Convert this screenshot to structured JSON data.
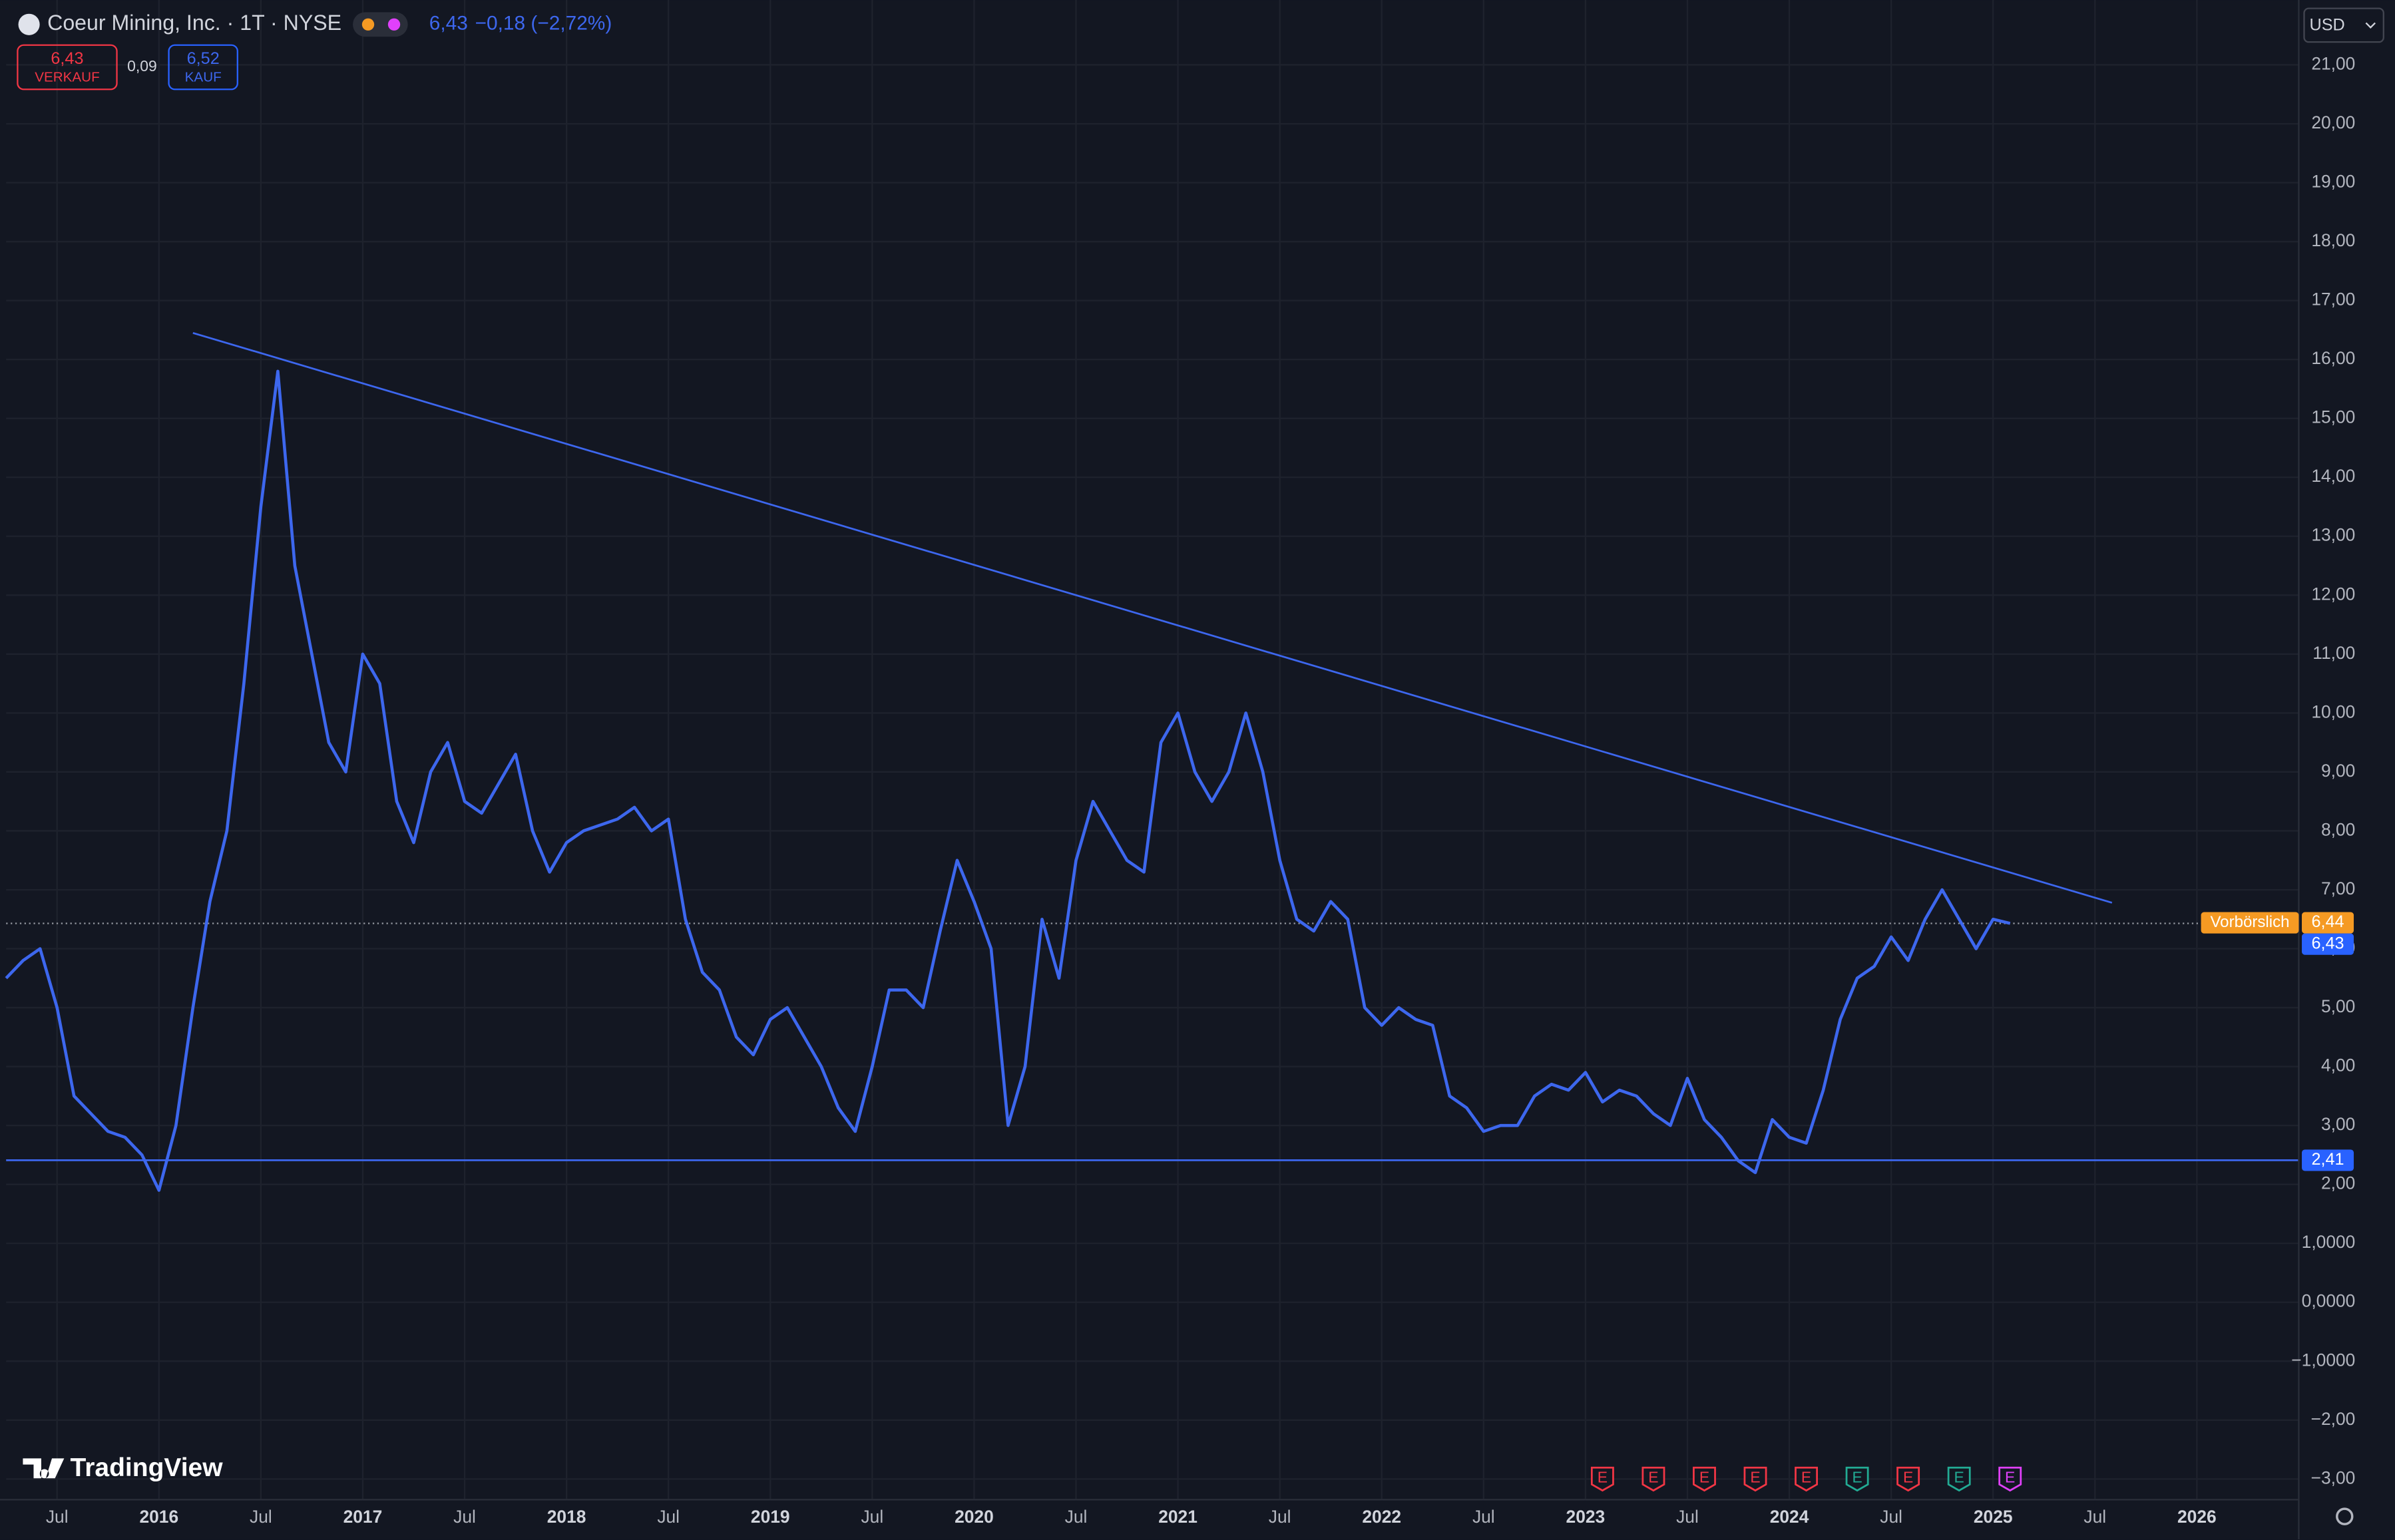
{
  "header": {
    "symbol": "Coeur Mining, Inc. · 1T · NYSE",
    "last": "6,43",
    "change": "−0,18 (−2,72%)",
    "sell_price": "6,43",
    "sell_label": "VERKAUF",
    "spread": "0,09",
    "buy_price": "6,52",
    "buy_label": "KAUF",
    "currency": "USD",
    "brand": "TradingView"
  },
  "chart_data": {
    "type": "line",
    "xlim": [
      "2015-04",
      "2026-07"
    ],
    "xticks": [
      {
        "value": "2015-07",
        "label": "Jul"
      },
      {
        "value": "2016-01",
        "label": "2016"
      },
      {
        "value": "2016-07",
        "label": "Jul"
      },
      {
        "value": "2017-01",
        "label": "2017"
      },
      {
        "value": "2017-07",
        "label": "Jul"
      },
      {
        "value": "2018-01",
        "label": "2018"
      },
      {
        "value": "2018-07",
        "label": "Jul"
      },
      {
        "value": "2019-01",
        "label": "2019"
      },
      {
        "value": "2019-07",
        "label": "Jul"
      },
      {
        "value": "2020-01",
        "label": "2020"
      },
      {
        "value": "2020-07",
        "label": "Jul"
      },
      {
        "value": "2021-01",
        "label": "2021"
      },
      {
        "value": "2021-07",
        "label": "Jul"
      },
      {
        "value": "2022-01",
        "label": "2022"
      },
      {
        "value": "2022-07",
        "label": "Jul"
      },
      {
        "value": "2023-01",
        "label": "2023"
      },
      {
        "value": "2023-07",
        "label": "Jul"
      },
      {
        "value": "2024-01",
        "label": "2024"
      },
      {
        "value": "2024-07",
        "label": "Jul"
      },
      {
        "value": "2025-01",
        "label": "2025"
      },
      {
        "value": "2025-07",
        "label": "Jul"
      },
      {
        "value": "2026-01",
        "label": "2026"
      }
    ],
    "ylim": [
      -3.35,
      22.1
    ],
    "yticks": [
      {
        "value": -3,
        "label": "−3,00"
      },
      {
        "value": -2,
        "label": "−2,00"
      },
      {
        "value": -1,
        "label": "−1,0000"
      },
      {
        "value": 0,
        "label": "0,0000"
      },
      {
        "value": 1,
        "label": "1,0000"
      },
      {
        "value": 2,
        "label": "2,00"
      },
      {
        "value": 3,
        "label": "3,00"
      },
      {
        "value": 4,
        "label": "4,00"
      },
      {
        "value": 5,
        "label": "5,00"
      },
      {
        "value": 6,
        "label": "6,00"
      },
      {
        "value": 7,
        "label": "7,00"
      },
      {
        "value": 8,
        "label": "8,00"
      },
      {
        "value": 9,
        "label": "9,00"
      },
      {
        "value": 10,
        "label": "10,00"
      },
      {
        "value": 11,
        "label": "11,00"
      },
      {
        "value": 12,
        "label": "12,00"
      },
      {
        "value": 13,
        "label": "13,00"
      },
      {
        "value": 14,
        "label": "14,00"
      },
      {
        "value": 15,
        "label": "15,00"
      },
      {
        "value": 16,
        "label": "16,00"
      },
      {
        "value": 17,
        "label": "17,00"
      },
      {
        "value": 18,
        "label": "18,00"
      },
      {
        "value": 19,
        "label": "19,00"
      },
      {
        "value": 20,
        "label": "20,00"
      },
      {
        "value": 21,
        "label": "21,00"
      }
    ],
    "grid": true,
    "series": [
      {
        "name": "CDE",
        "color": "#3d67ee",
        "x": [
          "2015-04",
          "2015-05",
          "2015-06",
          "2015-07",
          "2015-08",
          "2015-09",
          "2015-10",
          "2015-11",
          "2015-12",
          "2016-01",
          "2016-02",
          "2016-03",
          "2016-04",
          "2016-05",
          "2016-06",
          "2016-07",
          "2016-08",
          "2016-09",
          "2016-10",
          "2016-11",
          "2016-12",
          "2017-01",
          "2017-02",
          "2017-03",
          "2017-04",
          "2017-05",
          "2017-06",
          "2017-07",
          "2017-08",
          "2017-09",
          "2017-10",
          "2017-11",
          "2017-12",
          "2018-01",
          "2018-02",
          "2018-03",
          "2018-04",
          "2018-05",
          "2018-06",
          "2018-07",
          "2018-08",
          "2018-09",
          "2018-10",
          "2018-11",
          "2018-12",
          "2019-01",
          "2019-02",
          "2019-03",
          "2019-04",
          "2019-05",
          "2019-06",
          "2019-07",
          "2019-08",
          "2019-09",
          "2019-10",
          "2019-11",
          "2019-12",
          "2020-01",
          "2020-02",
          "2020-03",
          "2020-04",
          "2020-05",
          "2020-06",
          "2020-07",
          "2020-08",
          "2020-09",
          "2020-10",
          "2020-11",
          "2020-12",
          "2021-01",
          "2021-02",
          "2021-03",
          "2021-04",
          "2021-05",
          "2021-06",
          "2021-07",
          "2021-08",
          "2021-09",
          "2021-10",
          "2021-11",
          "2021-12",
          "2022-01",
          "2022-02",
          "2022-03",
          "2022-04",
          "2022-05",
          "2022-06",
          "2022-07",
          "2022-08",
          "2022-09",
          "2022-10",
          "2022-11",
          "2022-12",
          "2023-01",
          "2023-02",
          "2023-03",
          "2023-04",
          "2023-05",
          "2023-06",
          "2023-07",
          "2023-08",
          "2023-09",
          "2023-10",
          "2023-11",
          "2023-12",
          "2024-01",
          "2024-02",
          "2024-03",
          "2024-04",
          "2024-05",
          "2024-06",
          "2024-07",
          "2024-08",
          "2024-09",
          "2024-10",
          "2024-11",
          "2024-12",
          "2025-01",
          "2025-02"
        ],
        "values": [
          5.5,
          5.8,
          6.0,
          5.0,
          3.5,
          3.2,
          2.9,
          2.8,
          2.5,
          1.9,
          3.0,
          5.0,
          6.8,
          8.0,
          10.5,
          13.5,
          15.8,
          12.5,
          11.0,
          9.5,
          9.0,
          11.0,
          10.5,
          8.5,
          7.8,
          9.0,
          9.5,
          8.5,
          8.3,
          8.8,
          9.3,
          8.0,
          7.3,
          7.8,
          8.0,
          8.1,
          8.2,
          8.4,
          8.0,
          8.2,
          6.5,
          5.6,
          5.3,
          4.5,
          4.2,
          4.8,
          5.0,
          4.5,
          4.0,
          3.3,
          2.9,
          4.0,
          5.3,
          5.3,
          5.0,
          6.3,
          7.5,
          6.8,
          6.0,
          3.0,
          4.0,
          6.5,
          5.5,
          7.5,
          8.5,
          8.0,
          7.5,
          7.3,
          9.5,
          10.0,
          9.0,
          8.5,
          9.0,
          10.0,
          9.0,
          7.5,
          6.5,
          6.3,
          6.8,
          6.5,
          5.0,
          4.7,
          5.0,
          4.8,
          4.7,
          3.5,
          3.3,
          2.9,
          3.0,
          3.0,
          3.5,
          3.7,
          3.6,
          3.9,
          3.4,
          3.6,
          3.5,
          3.2,
          3.0,
          3.8,
          3.1,
          2.8,
          2.4,
          2.2,
          3.1,
          2.8,
          2.7,
          3.6,
          4.8,
          5.5,
          5.7,
          6.2,
          5.8,
          6.5,
          7.0,
          6.5,
          6.0,
          6.5,
          6.43
        ]
      }
    ],
    "trend_line": {
      "color": "#3d67ee",
      "x": [
        "2016-03",
        "2025-08"
      ],
      "values": [
        16.45,
        6.78
      ]
    },
    "support_line": {
      "color": "#3d67ee",
      "value": 2.41,
      "label": "2,41"
    },
    "price_line": {
      "color": "#2962ff",
      "value": 6.43,
      "label": "6,43"
    },
    "premarket": {
      "color": "#f59a23",
      "label": "Vorbörslich",
      "value": 6.44,
      "value_label": "6,44"
    },
    "earnings": [
      {
        "x": "2023-02",
        "label": "E",
        "color": "#f23645"
      },
      {
        "x": "2023-05",
        "label": "E",
        "color": "#f23645"
      },
      {
        "x": "2023-08",
        "label": "E",
        "color": "#f23645"
      },
      {
        "x": "2023-11",
        "label": "E",
        "color": "#f23645"
      },
      {
        "x": "2024-02",
        "label": "E",
        "color": "#f23645"
      },
      {
        "x": "2024-05",
        "label": "E",
        "color": "#22ab94"
      },
      {
        "x": "2024-08",
        "label": "E",
        "color": "#f23645"
      },
      {
        "x": "2024-11",
        "label": "E",
        "color": "#22ab94"
      },
      {
        "x": "2025-02",
        "label": "E",
        "color": "#e040fb"
      }
    ]
  }
}
